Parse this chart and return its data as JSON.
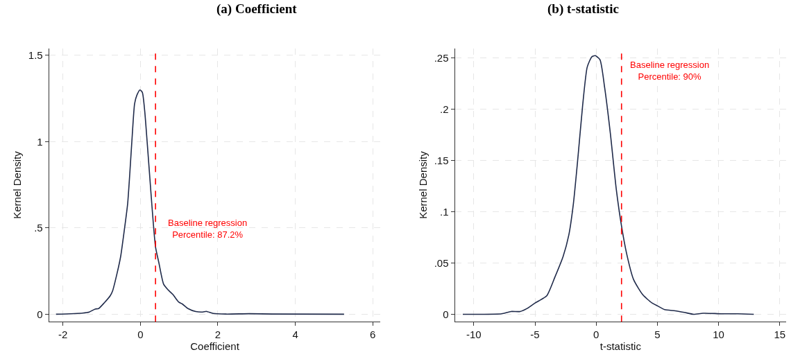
{
  "chart_data": [
    {
      "type": "line",
      "title": "(a) Coefficient",
      "xlabel": "Coefficient",
      "ylabel": "Kernel Density",
      "series": [
        {
          "color": "#1f2a4a",
          "x": [
            -2.18,
            -1.49,
            -1.32,
            -1.17,
            -1.08,
            -0.93,
            -0.78,
            -0.72,
            -0.6,
            -0.51,
            -0.42,
            -0.33,
            -0.27,
            -0.21,
            -0.15,
            -0.09,
            -0.01,
            0.05,
            0.11,
            0.18,
            0.27,
            0.33,
            0.39,
            0.48,
            0.6,
            0.72,
            0.84,
            0.99,
            1.08,
            1.23,
            1.43,
            1.61,
            1.7,
            1.88,
            2.21,
            2.81,
            3.41,
            5.26
          ],
          "values": [
            0,
            0.007,
            0.013,
            0.03,
            0.033,
            0.067,
            0.107,
            0.134,
            0.24,
            0.335,
            0.48,
            0.64,
            0.83,
            1.04,
            1.22,
            1.27,
            1.3,
            1.285,
            1.18,
            0.98,
            0.71,
            0.535,
            0.39,
            0.295,
            0.174,
            0.14,
            0.114,
            0.07,
            0.06,
            0.033,
            0.016,
            0.013,
            0.017,
            0.005,
            0.001,
            0.003,
            0.001,
            0
          ]
        }
      ],
      "xlim": [
        -2.36,
        6.2
      ],
      "xticks": [
        -2,
        0,
        2,
        4,
        6
      ],
      "ylim": [
        -0.043,
        1.54
      ],
      "yticks": [
        0,
        {
          "value": 0.5,
          "label": ".5"
        },
        1,
        1.5
      ],
      "ref_lines": [
        {
          "axis": "x",
          "value": 0.39,
          "color": "#ff0000",
          "line_style": "dashed"
        }
      ],
      "annotations": [
        "Baseline regression\nPercentile: 87.2%"
      ],
      "grid": true,
      "line_style": "solid",
      "marker": "none"
    },
    {
      "type": "line",
      "title": "(b) t-statistic",
      "xlabel": "t-statistic",
      "ylabel": "Kernel Density",
      "series": [
        {
          "color": "#1f2a4a",
          "x": [
            -10.9,
            -9.8,
            -7.73,
            -6.97,
            -6.21,
            -5.65,
            -4.99,
            -4.7,
            -4.04,
            -3.38,
            -2.71,
            -2.24,
            -1.86,
            -1.49,
            -1.11,
            -0.73,
            -0.35,
            -0.07,
            0.31,
            0.69,
            1.16,
            1.64,
            2.07,
            2.49,
            3.05,
            3.81,
            4.56,
            5.04,
            5.6,
            6.46,
            7.21,
            7.97,
            8.73,
            10.24,
            11.56,
            12.88
          ],
          "values": [
            0,
            0,
            0.0005,
            0.0027,
            0.0027,
            0.0056,
            0.011,
            0.013,
            0.018,
            0.036,
            0.056,
            0.077,
            0.108,
            0.153,
            0.203,
            0.241,
            0.251,
            0.252,
            0.248,
            0.221,
            0.176,
            0.122,
            0.086,
            0.059,
            0.034,
            0.019,
            0.011,
            0.008,
            0.0045,
            0.0034,
            0.0018,
            0,
            0.001,
            0.0005,
            0.0005,
            0
          ]
        }
      ],
      "xlim": [
        -11.55,
        15.53
      ],
      "xticks": [
        -10,
        -5,
        0,
        5,
        10,
        15
      ],
      "ylim": [
        -0.0072,
        0.259
      ],
      "yticks": [
        0,
        {
          "value": 0.05,
          "label": ".05"
        },
        {
          "value": 0.1,
          "label": ".1"
        },
        {
          "value": 0.15,
          "label": ".15"
        },
        {
          "value": 0.2,
          "label": ".2"
        },
        {
          "value": 0.25,
          "label": ".25"
        }
      ],
      "ref_lines": [
        {
          "axis": "x",
          "value": 2.07,
          "color": "#ff0000",
          "line_style": "dashed"
        }
      ],
      "annotations": [
        "Baseline regression\nPercentile: 90%"
      ],
      "grid": true,
      "line_style": "solid",
      "marker": "none"
    }
  ]
}
